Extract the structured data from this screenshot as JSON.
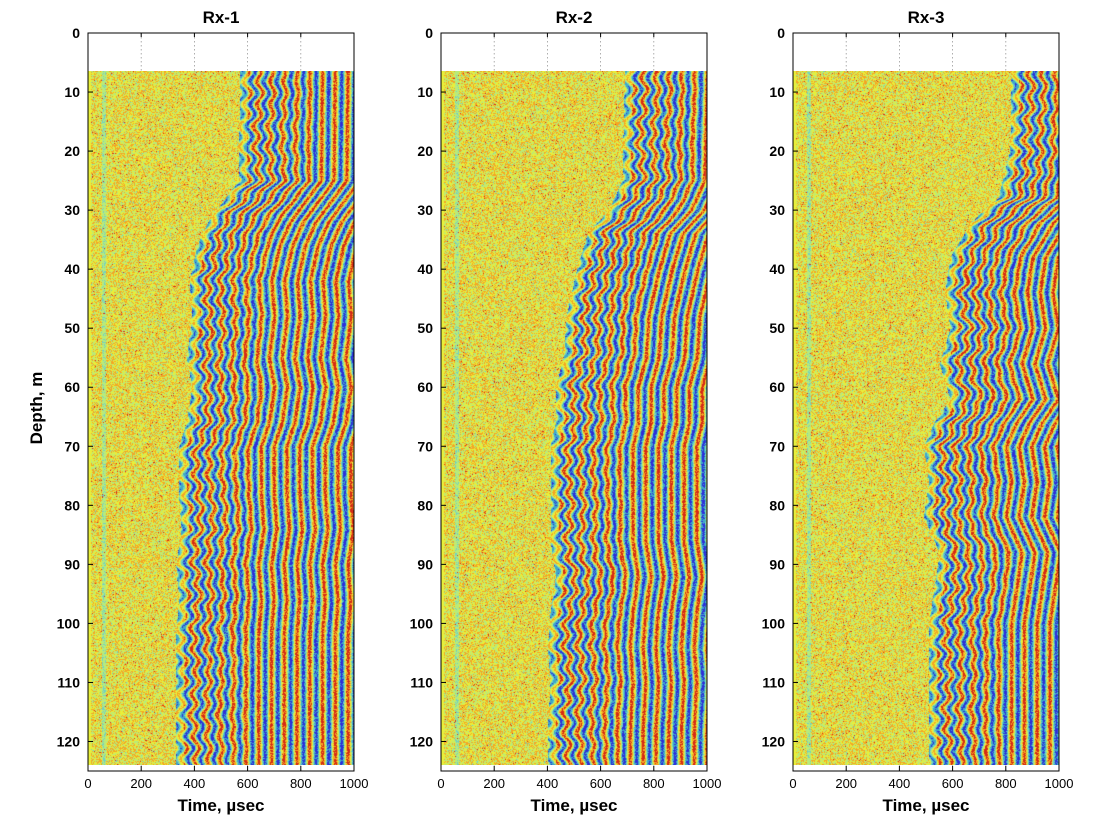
{
  "chart_data": {
    "type": "heatmap",
    "ylabel": "Depth, m",
    "colorscale": [
      "#2d2fd8",
      "#3fa8c8",
      "#6fd0c6",
      "#b9ea7a",
      "#e8ef3a",
      "#f4a624",
      "#d42a16"
    ],
    "panels": [
      {
        "title": "Rx-1",
        "xlabel": "Time,  µsec",
        "xlim": [
          0,
          1000
        ],
        "ylim": [
          0,
          125
        ],
        "data_depth_range": [
          6.5,
          124
        ],
        "x_ticks": [
          "0",
          "200",
          "400",
          "600",
          "800",
          "1000"
        ],
        "y_ticks": [
          "0",
          "10",
          "20",
          "30",
          "40",
          "50",
          "60",
          "70",
          "80",
          "90",
          "100",
          "110",
          "120"
        ],
        "first_arrival_usec": [
          [
            6.5,
            580
          ],
          [
            25,
            575
          ],
          [
            32,
            460
          ],
          [
            36,
            420
          ],
          [
            42,
            390
          ],
          [
            48,
            400
          ],
          [
            55,
            380
          ],
          [
            60,
            400
          ],
          [
            66,
            380
          ],
          [
            70,
            350
          ],
          [
            75,
            350
          ],
          [
            78,
            350
          ],
          [
            84,
            360
          ],
          [
            90,
            340
          ],
          [
            96,
            350
          ],
          [
            102,
            340
          ],
          [
            110,
            340
          ],
          [
            118,
            340
          ],
          [
            124,
            340
          ]
        ]
      },
      {
        "title": "Rx-2",
        "xlabel": "Time,  µsec",
        "xlim": [
          0,
          1000
        ],
        "ylim": [
          0,
          125
        ],
        "data_depth_range": [
          6.5,
          124
        ],
        "x_ticks": [
          "0",
          "200",
          "400",
          "600",
          "800",
          "1000"
        ],
        "y_ticks": [
          "0",
          "10",
          "20",
          "30",
          "40",
          "50",
          "60",
          "70",
          "80",
          "90",
          "100",
          "110",
          "120"
        ],
        "first_arrival_usec": [
          [
            6.5,
            700
          ],
          [
            25,
            690
          ],
          [
            30,
            640
          ],
          [
            34,
            560
          ],
          [
            40,
            520
          ],
          [
            48,
            480
          ],
          [
            55,
            470
          ],
          [
            60,
            440
          ],
          [
            66,
            440
          ],
          [
            70,
            420
          ],
          [
            75,
            420
          ],
          [
            80,
            420
          ],
          [
            86,
            420
          ],
          [
            92,
            440
          ],
          [
            98,
            420
          ],
          [
            104,
            410
          ],
          [
            110,
            420
          ],
          [
            118,
            410
          ],
          [
            124,
            410
          ]
        ]
      },
      {
        "title": "Rx-3",
        "xlabel": "Time,  µsec",
        "xlim": [
          0,
          1000
        ],
        "ylim": [
          0,
          125
        ],
        "data_depth_range": [
          6.5,
          124
        ],
        "x_ticks": [
          "0",
          "200",
          "400",
          "600",
          "800",
          "1000"
        ],
        "y_ticks": [
          "0",
          "10",
          "20",
          "30",
          "40",
          "50",
          "60",
          "70",
          "80",
          "90",
          "100",
          "110",
          "120"
        ],
        "first_arrival_usec": [
          [
            6.5,
            830
          ],
          [
            20,
            825
          ],
          [
            28,
            780
          ],
          [
            32,
            680
          ],
          [
            38,
            600
          ],
          [
            44,
            580
          ],
          [
            50,
            600
          ],
          [
            56,
            560
          ],
          [
            62,
            600
          ],
          [
            66,
            540
          ],
          [
            70,
            500
          ],
          [
            76,
            520
          ],
          [
            82,
            500
          ],
          [
            88,
            560
          ],
          [
            94,
            540
          ],
          [
            100,
            520
          ],
          [
            108,
            520
          ],
          [
            116,
            520
          ],
          [
            124,
            520
          ]
        ]
      }
    ]
  }
}
